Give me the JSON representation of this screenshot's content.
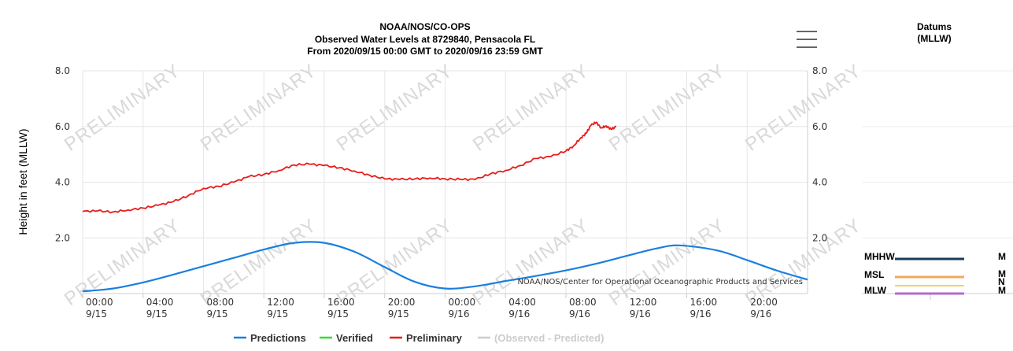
{
  "chart_data": {
    "type": "line",
    "title": "NOAA/NOS/CO-OPS",
    "subtitle_lines": [
      "Observed Water Levels at 8729840, Pensacola FL",
      "From 2020/09/15 00:00 GMT to 2020/09/16 23:59 GMT"
    ],
    "ylabel": "Height in feet (MLLW)",
    "ylim": [
      0,
      8
    ],
    "yticks": [
      "8.0",
      "6.0",
      "4.0",
      "2.0"
    ],
    "xlim": [
      "2020-09-15 00:00",
      "2020-09-17 00:00"
    ],
    "xticks": [
      {
        "time": "00:00",
        "date": "9/15"
      },
      {
        "time": "04:00",
        "date": "9/15"
      },
      {
        "time": "08:00",
        "date": "9/15"
      },
      {
        "time": "12:00",
        "date": "9/15"
      },
      {
        "time": "16:00",
        "date": "9/15"
      },
      {
        "time": "20:00",
        "date": "9/15"
      },
      {
        "time": "00:00",
        "date": "9/16"
      },
      {
        "time": "04:00",
        "date": "9/16"
      },
      {
        "time": "08:00",
        "date": "9/16"
      },
      {
        "time": "12:00",
        "date": "9/16"
      },
      {
        "time": "16:00",
        "date": "9/16"
      },
      {
        "time": "20:00",
        "date": "9/16"
      }
    ],
    "grid": true,
    "watermark": "PRELIMINARY",
    "credit": "NOAA/NOS/Center for Operational Oceanographic Products and Services",
    "series": [
      {
        "name": "Predictions",
        "color": "#1a7fe0",
        "x": [
          "2020-09-15 00:00",
          "2020-09-15 02:00",
          "2020-09-15 04:00",
          "2020-09-15 06:00",
          "2020-09-15 08:00",
          "2020-09-15 10:00",
          "2020-09-15 12:00",
          "2020-09-15 14:00",
          "2020-09-15 16:00",
          "2020-09-15 18:00",
          "2020-09-15 20:00",
          "2020-09-15 22:00",
          "2020-09-16 00:00",
          "2020-09-16 02:00",
          "2020-09-16 04:00",
          "2020-09-16 06:00",
          "2020-09-16 08:00",
          "2020-09-16 10:00",
          "2020-09-16 12:00",
          "2020-09-16 14:00",
          "2020-09-16 15:30",
          "2020-09-16 18:00",
          "2020-09-16 20:00",
          "2020-09-16 22:00",
          "2020-09-17 00:00"
        ],
        "y": [
          0.08,
          0.18,
          0.4,
          0.68,
          0.98,
          1.28,
          1.58,
          1.82,
          1.82,
          1.5,
          0.95,
          0.42,
          0.18,
          0.26,
          0.45,
          0.63,
          0.83,
          1.07,
          1.35,
          1.62,
          1.73,
          1.55,
          1.2,
          0.82,
          0.5
        ]
      },
      {
        "name": "Verified",
        "color": "#33dd33",
        "x": [],
        "y": []
      },
      {
        "name": "Preliminary",
        "color": "#e81c1c",
        "x": [
          "2020-09-15 00:00",
          "2020-09-15 01:00",
          "2020-09-15 02:00",
          "2020-09-15 03:00",
          "2020-09-15 04:00",
          "2020-09-15 05:00",
          "2020-09-15 06:00",
          "2020-09-15 07:00",
          "2020-09-15 08:00",
          "2020-09-15 09:00",
          "2020-09-15 10:00",
          "2020-09-15 11:00",
          "2020-09-15 12:00",
          "2020-09-15 13:00",
          "2020-09-15 14:00",
          "2020-09-15 15:00",
          "2020-09-15 16:00",
          "2020-09-15 17:00",
          "2020-09-15 18:00",
          "2020-09-15 19:00",
          "2020-09-15 20:00",
          "2020-09-15 21:00",
          "2020-09-15 22:00",
          "2020-09-15 23:00",
          "2020-09-16 00:00",
          "2020-09-16 01:00",
          "2020-09-16 02:00",
          "2020-09-16 03:00",
          "2020-09-16 04:00",
          "2020-09-16 05:00",
          "2020-09-16 06:00",
          "2020-09-16 07:00",
          "2020-09-16 08:00",
          "2020-09-16 08:30",
          "2020-09-16 09:00",
          "2020-09-16 09:20",
          "2020-09-16 09:40",
          "2020-09-16 10:00",
          "2020-09-16 10:20",
          "2020-09-16 10:40",
          "2020-09-16 11:00",
          "2020-09-16 11:20"
        ],
        "y": [
          2.95,
          2.97,
          2.93,
          3.0,
          3.07,
          3.17,
          3.3,
          3.52,
          3.78,
          3.85,
          4.0,
          4.2,
          4.28,
          4.42,
          4.62,
          4.65,
          4.6,
          4.52,
          4.4,
          4.25,
          4.12,
          4.1,
          4.12,
          4.15,
          4.12,
          4.1,
          4.1,
          4.3,
          4.42,
          4.6,
          4.85,
          4.92,
          5.12,
          5.3,
          5.6,
          5.75,
          6.05,
          6.15,
          5.95,
          6.02,
          5.9,
          6.0
        ]
      },
      {
        "name": "(Observed - Predicted)",
        "color": "#cccccc",
        "x": [],
        "y": []
      }
    ],
    "legend_position": "bottom-center"
  },
  "menu": {
    "icon": "hamburger-menu-icon"
  },
  "datums": {
    "title_lines": [
      "Datums",
      "(MLLW)"
    ],
    "items": [
      {
        "label": "MHHW",
        "color": "#1b3a57",
        "value": 1.55
      },
      {
        "label": "MSL",
        "color": "#f0a95a",
        "value": 0.65
      },
      {
        "label": "MLW",
        "color": "#b06ccf",
        "value": 0.0
      }
    ],
    "clipped_labels": [
      "M",
      "M",
      "N",
      "M"
    ]
  },
  "extra_datum_line": {
    "color": "#f2d35a",
    "value": 0.3
  }
}
